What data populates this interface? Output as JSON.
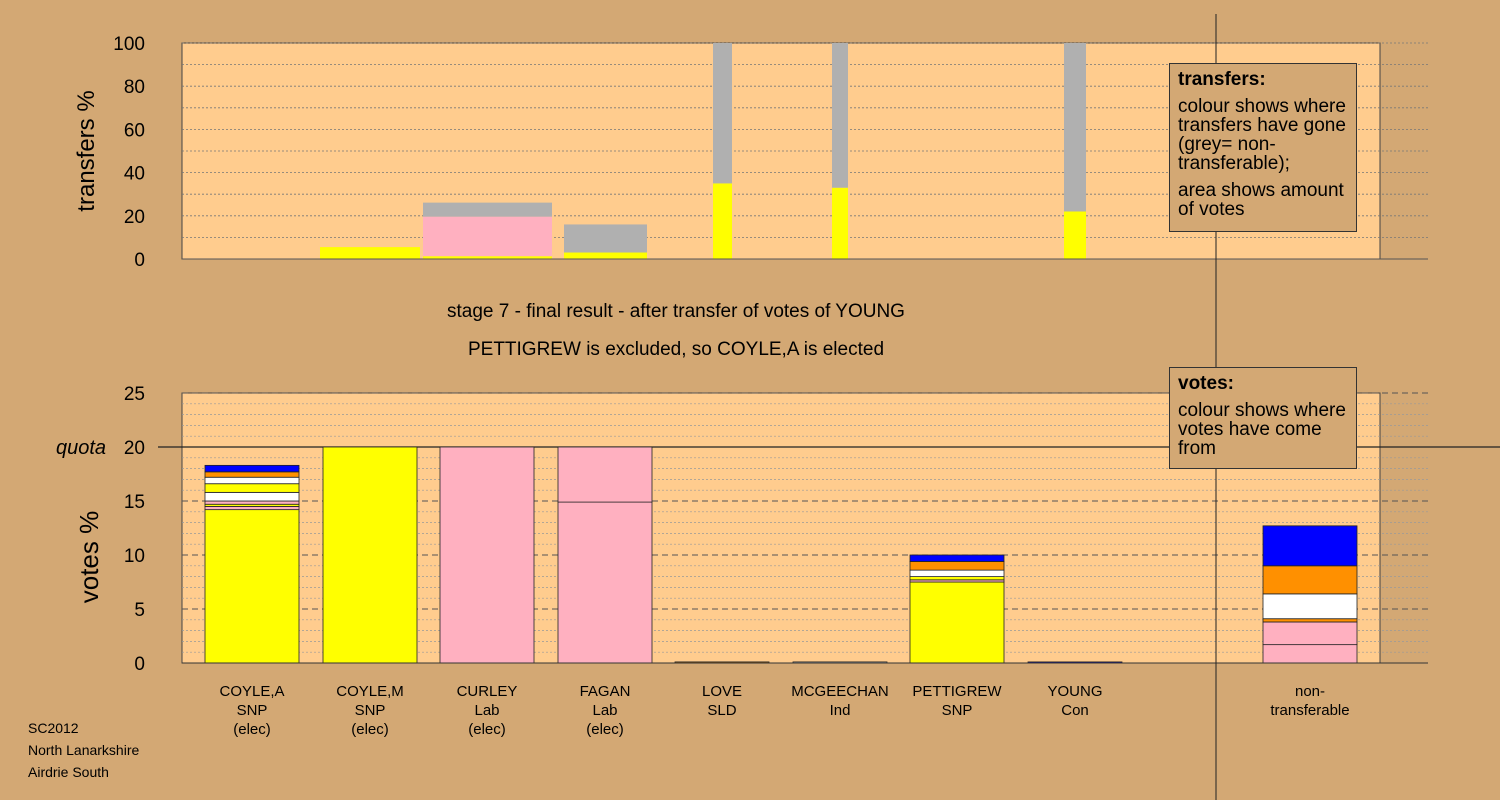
{
  "top_chart": {
    "ylabel": "transfers %",
    "ticks": [
      0,
      20,
      40,
      60,
      80,
      100
    ]
  },
  "bottom_chart": {
    "ylabel": "votes %",
    "ticks": [
      0,
      5,
      10,
      15,
      20,
      25
    ],
    "quota_label": "quota",
    "quota_value": 20
  },
  "captions": {
    "line1": "stage 7 - final result - after transfer of votes of YOUNG",
    "line2": "PETTIGREW is excluded, so COYLE,A is elected"
  },
  "legend_transfers": {
    "title": "transfers:",
    "p1": "colour shows where transfers have gone (grey= non-transferable);",
    "p2": "area shows amount of votes"
  },
  "legend_votes": {
    "title": "votes:",
    "p1": "colour shows where votes have come from"
  },
  "candidates": [
    {
      "name": "COYLE,A",
      "party": "SNP",
      "status": "(elec)"
    },
    {
      "name": "COYLE,M",
      "party": "SNP",
      "status": "(elec)"
    },
    {
      "name": "CURLEY",
      "party": "Lab",
      "status": "(elec)"
    },
    {
      "name": "FAGAN",
      "party": "Lab",
      "status": "(elec)"
    },
    {
      "name": "LOVE",
      "party": "SLD",
      "status": ""
    },
    {
      "name": "MCGEECHAN",
      "party": "Ind",
      "status": ""
    },
    {
      "name": "PETTIGREW",
      "party": "SNP",
      "status": ""
    },
    {
      "name": "YOUNG",
      "party": "Con",
      "status": ""
    },
    {
      "name": "non-transferable",
      "party": "",
      "status": ""
    }
  ],
  "footer": {
    "line1": "SC2012",
    "line2": "North Lanarkshire",
    "line3": "Airdrie South"
  },
  "colors": {
    "background": "#D3A874",
    "plot": "#FFCC8E",
    "SNP": "#FFFF00",
    "Lab": "#FFB0C0",
    "SLD": "#FF9000",
    "Ind": "#FFFFFF",
    "Con": "#0000FF",
    "nontransferable": "#B0B0B0"
  },
  "chart_data": [
    {
      "type": "bar",
      "title": "",
      "ylabel": "transfers %",
      "ylim": [
        0,
        100
      ],
      "note": "transfer bars: stacked segments of destination colours, grey = non-transferable",
      "bars": [
        {
          "source": "COYLE,M",
          "segments": [
            {
              "color": "SNP",
              "value": 5.5
            }
          ]
        },
        {
          "source": "CURLEY",
          "segments": [
            {
              "color": "SNP",
              "value": 1.3
            },
            {
              "color": "Lab",
              "value": 18.3
            },
            {
              "color": "nontransferable",
              "value": 6.5
            }
          ]
        },
        {
          "source": "FAGAN",
          "segments": [
            {
              "color": "SNP",
              "value": 3
            },
            {
              "color": "nontransferable",
              "value": 13
            }
          ]
        },
        {
          "source": "LOVE",
          "segments": [
            {
              "color": "SNP",
              "value": 35
            },
            {
              "color": "nontransferable",
              "value": 65
            }
          ]
        },
        {
          "source": "MCGEECHAN",
          "segments": [
            {
              "color": "SNP",
              "value": 33
            },
            {
              "color": "nontransferable",
              "value": 67
            }
          ]
        },
        {
          "source": "YOUNG",
          "segments": [
            {
              "color": "SNP",
              "value": 22
            },
            {
              "color": "nontransferable",
              "value": 78
            }
          ]
        }
      ]
    },
    {
      "type": "bar",
      "title": "",
      "ylabel": "votes %",
      "ylim": [
        0,
        25
      ],
      "quota": 20,
      "categories": [
        "COYLE,A",
        "COYLE,M",
        "CURLEY",
        "FAGAN",
        "LOVE",
        "MCGEECHAN",
        "PETTIGREW",
        "YOUNG",
        "non-transferable"
      ],
      "stacks": [
        [
          {
            "color": "SNP",
            "value": 14.2
          },
          {
            "color": "Lab",
            "value": 0.3
          },
          {
            "color": "SNP",
            "value": 0.2
          },
          {
            "color": "Lab",
            "value": 0.3
          },
          {
            "color": "Ind",
            "value": 0.8
          },
          {
            "color": "SNP",
            "value": 0.8
          },
          {
            "color": "Ind",
            "value": 0.6
          },
          {
            "color": "SLD",
            "value": 0.5
          },
          {
            "color": "Con",
            "value": 0.6
          }
        ],
        [
          {
            "color": "SNP",
            "value": 20
          }
        ],
        [
          {
            "color": "Lab",
            "value": 20
          }
        ],
        [
          {
            "color": "Lab",
            "value": 14.9
          },
          {
            "color": "Lab",
            "value": 5.1
          }
        ],
        [
          {
            "color": "SLD",
            "value": 0.1
          }
        ],
        [
          {
            "color": "Ind",
            "value": 0.1
          }
        ],
        [
          {
            "color": "SNP",
            "value": 7.5
          },
          {
            "color": "Lab",
            "value": 0.2
          },
          {
            "color": "SNP",
            "value": 0.3
          },
          {
            "color": "Ind",
            "value": 0.6
          },
          {
            "color": "SLD",
            "value": 0.8
          },
          {
            "color": "Con",
            "value": 0.6
          }
        ],
        [
          {
            "color": "Con",
            "value": 0.1
          }
        ],
        [
          {
            "color": "Lab",
            "value": 1.7
          },
          {
            "color": "Lab",
            "value": 2.1
          },
          {
            "color": "SLD",
            "value": 0.3
          },
          {
            "color": "Ind",
            "value": 2.3
          },
          {
            "color": "SLD",
            "value": 2.6
          },
          {
            "color": "Con",
            "value": 3.7
          }
        ]
      ]
    }
  ]
}
